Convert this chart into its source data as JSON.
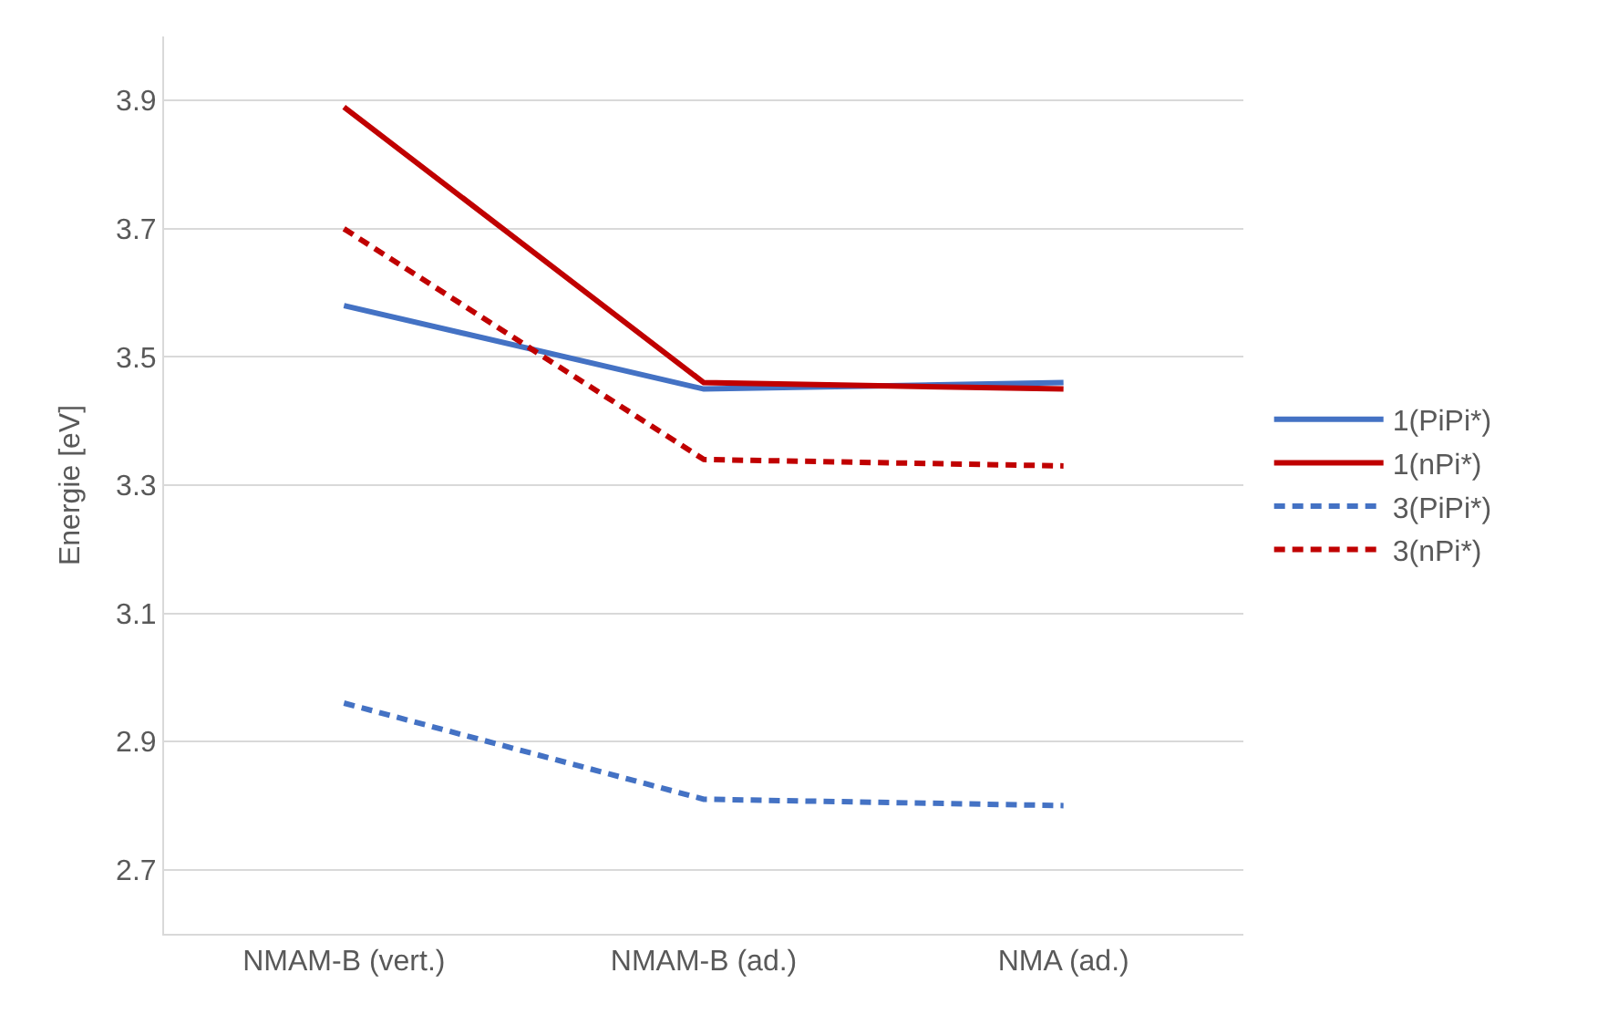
{
  "chart_data": {
    "type": "line",
    "ylabel": "Energie [eV]",
    "categories": [
      "NMAM-B (vert.)",
      "NMAM-B (ad.)",
      "NMA (ad.)"
    ],
    "ylim": [
      2.6,
      4.0
    ],
    "yticks": [
      2.7,
      2.9,
      3.1,
      3.3,
      3.5,
      3.7,
      3.9
    ],
    "grid": "y",
    "legend": "right",
    "marker": "none",
    "series": [
      {
        "name": "1(PiPi*)",
        "color": "#4472c4",
        "line_style": "solid",
        "values": [
          3.58,
          3.45,
          3.46
        ]
      },
      {
        "name": "1(nPi*)",
        "color": "#c00000",
        "line_style": "solid",
        "values": [
          3.89,
          3.46,
          3.45
        ]
      },
      {
        "name": "3(PiPi*)",
        "color": "#4472c4",
        "line_style": "dashed",
        "values": [
          2.96,
          2.81,
          2.8
        ]
      },
      {
        "name": "3(nPi*)",
        "color": "#c00000",
        "line_style": "dashed",
        "values": [
          3.7,
          3.34,
          3.33
        ]
      }
    ]
  }
}
